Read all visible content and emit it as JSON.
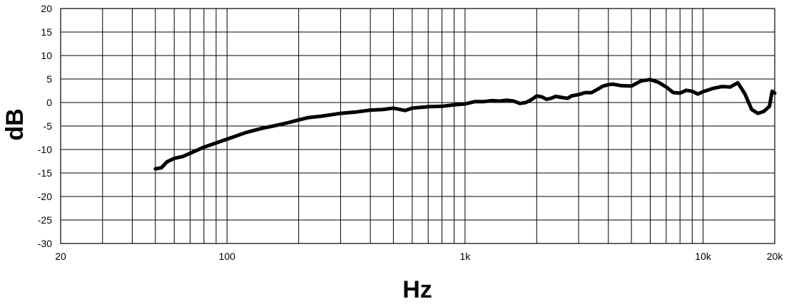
{
  "chart_data": {
    "type": "line",
    "title": "",
    "xlabel": "Hz",
    "ylabel": "dB",
    "x_scale": "log",
    "xlim": [
      20,
      20000
    ],
    "ylim": [
      -30,
      20
    ],
    "grid": true,
    "x_ticks": [
      {
        "value": 20,
        "label": "20"
      },
      {
        "value": 100,
        "label": "100"
      },
      {
        "value": 1000,
        "label": "1k"
      },
      {
        "value": 10000,
        "label": "10k"
      },
      {
        "value": 20000,
        "label": "20k"
      }
    ],
    "y_ticks": [
      {
        "value": 20,
        "label": "20"
      },
      {
        "value": 15,
        "label": "15"
      },
      {
        "value": 10,
        "label": "10"
      },
      {
        "value": 5,
        "label": "5"
      },
      {
        "value": 0,
        "label": "0"
      },
      {
        "value": -5,
        "label": "-5"
      },
      {
        "value": -10,
        "label": "-10"
      },
      {
        "value": -15,
        "label": "-15"
      },
      {
        "value": -20,
        "label": "-20"
      },
      {
        "value": -25,
        "label": "-25"
      },
      {
        "value": -30,
        "label": "-30"
      }
    ],
    "series": [
      {
        "color": "#000000",
        "points": [
          [
            50,
            -14.1
          ],
          [
            53,
            -13.9
          ],
          [
            56,
            -12.6
          ],
          [
            60,
            -11.9
          ],
          [
            65,
            -11.5
          ],
          [
            70,
            -10.8
          ],
          [
            80,
            -9.5
          ],
          [
            90,
            -8.6
          ],
          [
            100,
            -7.8
          ],
          [
            120,
            -6.4
          ],
          [
            140,
            -5.5
          ],
          [
            160,
            -4.9
          ],
          [
            180,
            -4.3
          ],
          [
            200,
            -3.7
          ],
          [
            220,
            -3.2
          ],
          [
            250,
            -2.9
          ],
          [
            300,
            -2.3
          ],
          [
            350,
            -2.0
          ],
          [
            400,
            -1.6
          ],
          [
            450,
            -1.5
          ],
          [
            500,
            -1.2
          ],
          [
            560,
            -1.7
          ],
          [
            600,
            -1.2
          ],
          [
            700,
            -0.9
          ],
          [
            800,
            -0.8
          ],
          [
            900,
            -0.5
          ],
          [
            1000,
            -0.3
          ],
          [
            1100,
            0.2
          ],
          [
            1200,
            0.2
          ],
          [
            1300,
            0.4
          ],
          [
            1400,
            0.3
          ],
          [
            1500,
            0.5
          ],
          [
            1600,
            0.3
          ],
          [
            1700,
            -0.2
          ],
          [
            1800,
            0.0
          ],
          [
            1900,
            0.6
          ],
          [
            2000,
            1.4
          ],
          [
            2100,
            1.2
          ],
          [
            2200,
            0.7
          ],
          [
            2300,
            0.9
          ],
          [
            2400,
            1.3
          ],
          [
            2600,
            1.0
          ],
          [
            2700,
            0.9
          ],
          [
            2800,
            1.4
          ],
          [
            3000,
            1.7
          ],
          [
            3200,
            2.1
          ],
          [
            3400,
            2.1
          ],
          [
            3600,
            2.8
          ],
          [
            3800,
            3.5
          ],
          [
            4000,
            3.8
          ],
          [
            4200,
            3.9
          ],
          [
            4500,
            3.6
          ],
          [
            5000,
            3.5
          ],
          [
            5500,
            4.6
          ],
          [
            6000,
            4.9
          ],
          [
            6500,
            4.3
          ],
          [
            7000,
            3.3
          ],
          [
            7500,
            2.1
          ],
          [
            8000,
            2.0
          ],
          [
            8500,
            2.6
          ],
          [
            9000,
            2.4
          ],
          [
            9500,
            1.8
          ],
          [
            10000,
            2.3
          ],
          [
            11000,
            3.0
          ],
          [
            12000,
            3.4
          ],
          [
            13000,
            3.3
          ],
          [
            14000,
            4.2
          ],
          [
            15000,
            1.8
          ],
          [
            16000,
            -1.5
          ],
          [
            17000,
            -2.3
          ],
          [
            18000,
            -1.9
          ],
          [
            19000,
            -0.8
          ],
          [
            19500,
            2.4
          ],
          [
            20000,
            2.0
          ]
        ]
      }
    ]
  }
}
